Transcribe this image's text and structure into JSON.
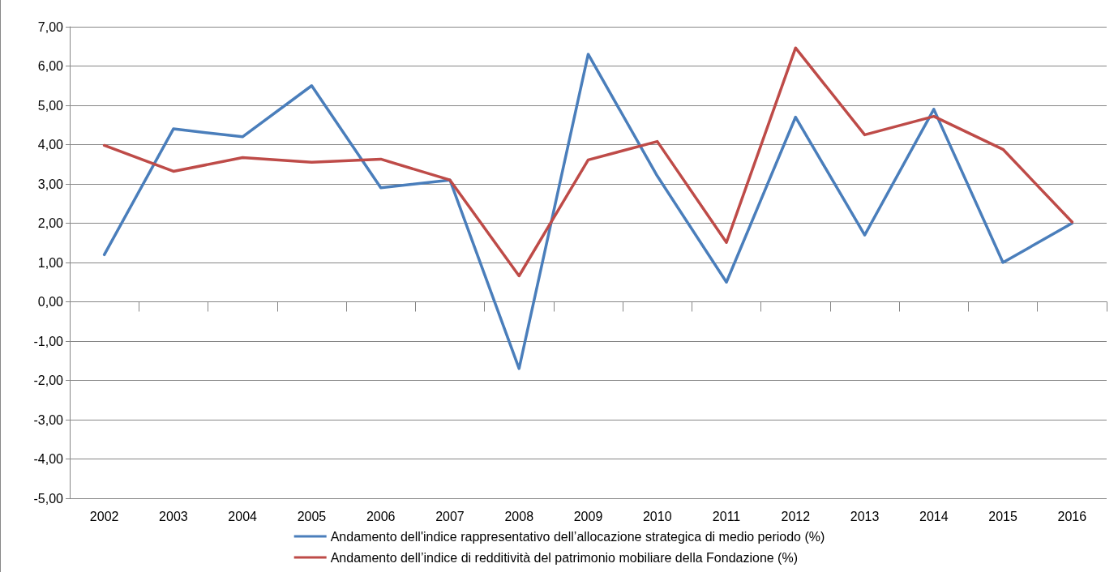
{
  "chart_data": {
    "type": "line",
    "categories": [
      "2002",
      "2003",
      "2004",
      "2005",
      "2006",
      "2007",
      "2008",
      "2009",
      "2010",
      "2011",
      "2012",
      "2013",
      "2014",
      "2015",
      "2016"
    ],
    "series": [
      {
        "name": "Andamento dell'indice rappresentativo dell’allocazione strategica di medio periodo (%)",
        "color": "#4a7ebb",
        "values": [
          1.2,
          4.4,
          4.2,
          5.5,
          2.9,
          3.1,
          -1.7,
          6.3,
          3.2,
          0.5,
          4.7,
          1.7,
          4.9,
          1.0,
          2.0
        ]
      },
      {
        "name": "Andamento dell’indice di redditività del patrimonio mobiliare della Fondazione (%)",
        "color": "#be4b48",
        "values": [
          3.98,
          3.32,
          3.67,
          3.55,
          3.63,
          3.1,
          0.66,
          3.61,
          4.08,
          1.51,
          6.46,
          4.25,
          4.72,
          3.88,
          2.03
        ]
      }
    ],
    "ylim": [
      -5,
      7
    ],
    "yticks": [
      {
        "value": -5,
        "label": "-5,00"
      },
      {
        "value": -4,
        "label": "-4,00"
      },
      {
        "value": -3,
        "label": "-3,00"
      },
      {
        "value": -2,
        "label": "-2,00"
      },
      {
        "value": -1,
        "label": "-1,00"
      },
      {
        "value": 0,
        "label": "0,00"
      },
      {
        "value": 1,
        "label": "1,00"
      },
      {
        "value": 2,
        "label": "2,00"
      },
      {
        "value": 3,
        "label": "3,00"
      },
      {
        "value": 4,
        "label": "4,00"
      },
      {
        "value": 5,
        "label": "5,00"
      },
      {
        "value": 6,
        "label": "6,00"
      },
      {
        "value": 7,
        "label": "7,00"
      }
    ],
    "grid": "y",
    "legend": "bottom",
    "marker": "none",
    "line_style": "solid"
  }
}
